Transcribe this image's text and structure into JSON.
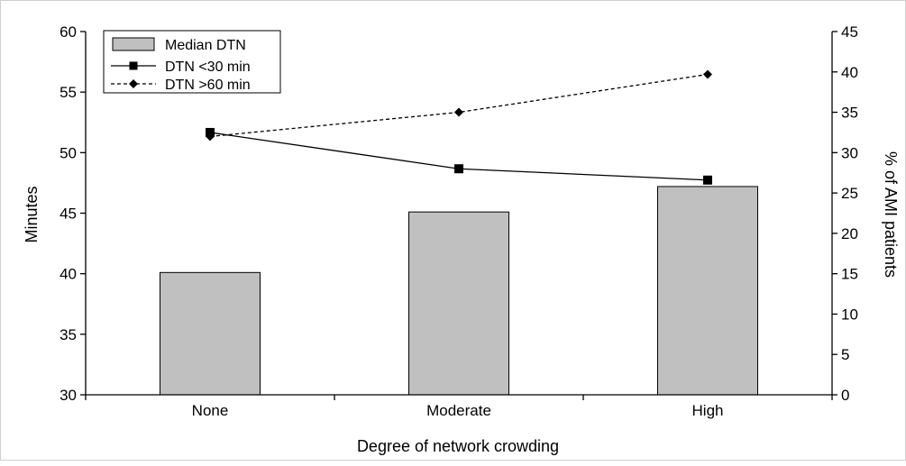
{
  "chart_data": {
    "type": "bar",
    "title": "",
    "xlabel": "Degree of network crowding",
    "ylabel": "Minutes",
    "y2label": "% of AMI patients",
    "categories": [
      "None",
      "Moderate",
      "High"
    ],
    "ylim": [
      30,
      60
    ],
    "y2lim": [
      0,
      45
    ],
    "yticks": [
      "30",
      "35",
      "40",
      "45",
      "50",
      "55",
      "60"
    ],
    "y2ticks": [
      "0",
      "5",
      "10",
      "15",
      "20",
      "25",
      "30",
      "35",
      "40",
      "45"
    ],
    "legend_position": "top-left",
    "grid": false,
    "series": [
      {
        "name": "Median DTN",
        "type": "bar",
        "axis": "left",
        "values": [
          40.1,
          45.1,
          47.2
        ],
        "color": "#c0c0c0"
      },
      {
        "name": "DTN <30 min",
        "type": "line",
        "axis": "right",
        "marker": "square",
        "dash": "solid",
        "values": [
          32.5,
          28.0,
          26.6
        ],
        "color": "#000000"
      },
      {
        "name": "DTN >60 min",
        "type": "line",
        "axis": "right",
        "marker": "diamond",
        "dash": "dashed",
        "values": [
          32.0,
          35.0,
          39.7
        ],
        "color": "#000000"
      }
    ]
  }
}
